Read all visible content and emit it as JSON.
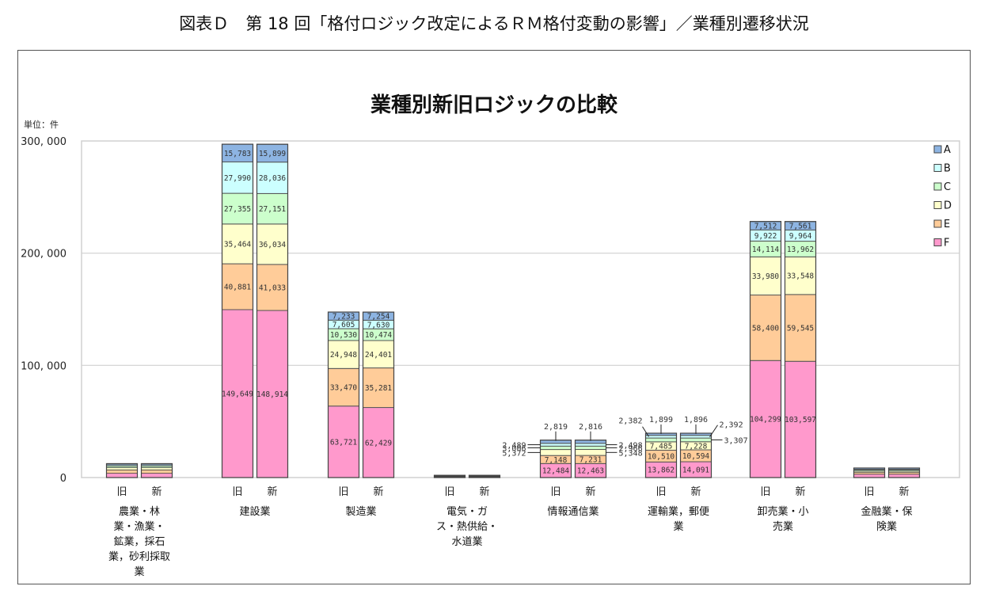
{
  "outer_title": "図表Ｄ　第 18 回「格付ロジック改定によるＲＭ格付変動の影響」／業種別遷移状況",
  "chart_data": {
    "type": "bar",
    "stacked": true,
    "title": "業種別新旧ロジックの比較",
    "unit_label": "単位：件",
    "xlabel": "",
    "ylabel": "",
    "ylim": [
      0,
      300000
    ],
    "yticks": [
      0,
      100000,
      200000,
      300000
    ],
    "ytick_labels": [
      "0",
      "100, 000",
      "200, 000",
      "300, 000"
    ],
    "grid": true,
    "legend_position": "top-right",
    "stack_order": [
      "F",
      "E",
      "D",
      "C",
      "B",
      "A"
    ],
    "legend": [
      {
        "name": "A",
        "color": "#8DB4E2"
      },
      {
        "name": "B",
        "color": "#CCFFFF"
      },
      {
        "name": "C",
        "color": "#CCFFCC"
      },
      {
        "name": "D",
        "color": "#FFFFCC"
      },
      {
        "name": "E",
        "color": "#FFCC99"
      },
      {
        "name": "F",
        "color": "#FF99CC"
      }
    ],
    "bar_labels": [
      "旧",
      "新"
    ],
    "categories": [
      {
        "name": "農業・林業・漁業・鉱業，採石業，砂利採取業",
        "lines": [
          "農業・林",
          "業・漁業・",
          "鉱業，採石",
          "業，砂利採取",
          "業"
        ],
        "bars": [
          {
            "label": "旧",
            "values": {
              "F": 3800,
              "E": 3000,
              "D": 2000,
              "C": 1500,
              "B": 1100,
              "A": 1000
            },
            "show_labels": false
          },
          {
            "label": "新",
            "values": {
              "F": 3800,
              "E": 3000,
              "D": 2000,
              "C": 1500,
              "B": 1100,
              "A": 1000
            },
            "show_labels": false
          }
        ]
      },
      {
        "name": "建設業",
        "lines": [
          "建設業"
        ],
        "bars": [
          {
            "label": "旧",
            "values": {
              "F": 149649,
              "E": 40881,
              "D": 35464,
              "C": 27355,
              "B": 27990,
              "A": 15783
            },
            "show_labels": true
          },
          {
            "label": "新",
            "values": {
              "F": 148914,
              "E": 41033,
              "D": 36034,
              "C": 27151,
              "B": 28036,
              "A": 15899
            },
            "show_labels": true
          }
        ]
      },
      {
        "name": "製造業",
        "lines": [
          "製造業"
        ],
        "bars": [
          {
            "label": "旧",
            "values": {
              "F": 63721,
              "E": 33470,
              "D": 24948,
              "C": 10530,
              "B": 7605,
              "A": 7233
            },
            "show_labels": true
          },
          {
            "label": "新",
            "values": {
              "F": 62429,
              "E": 35281,
              "D": 24401,
              "C": 10474,
              "B": 7630,
              "A": 7254
            },
            "show_labels": true
          }
        ]
      },
      {
        "name": "電気・ガス・熱供給・水道業",
        "lines": [
          "電気・ガ",
          "ス・熱供給・",
          "水道業"
        ],
        "bars": [
          {
            "label": "旧",
            "values": {
              "F": 500,
              "E": 400,
              "D": 350,
              "C": 300,
              "B": 250,
              "A": 200
            },
            "show_labels": false
          },
          {
            "label": "新",
            "values": {
              "F": 500,
              "E": 400,
              "D": 350,
              "C": 300,
              "B": 250,
              "A": 200
            },
            "show_labels": false
          }
        ]
      },
      {
        "name": "情報通信業",
        "lines": [
          "情報通信業"
        ],
        "bars": [
          {
            "label": "旧",
            "values": {
              "F": 12484,
              "E": 7148,
              "D": 5372,
              "C": 3006,
              "B": 2489,
              "A": 2819
            },
            "show_labels": true
          },
          {
            "label": "新",
            "values": {
              "F": 12463,
              "E": 7231,
              "D": 5348,
              "C": 2966,
              "B": 2498,
              "A": 2816
            },
            "show_labels": true
          }
        ]
      },
      {
        "name": "運輸業，郵便業",
        "lines": [
          "運輸業，郵便",
          "業"
        ],
        "bars": [
          {
            "label": "旧",
            "values": {
              "F": 13862,
              "E": 10510,
              "D": 7485,
              "C": 3375,
              "B": 2382,
              "A": 1899
            },
            "show_labels": true
          },
          {
            "label": "新",
            "values": {
              "F": 14091,
              "E": 10594,
              "D": 7228,
              "C": 3307,
              "B": 2392,
              "A": 1896
            },
            "show_labels": true
          }
        ]
      },
      {
        "name": "卸売業・小売業",
        "lines": [
          "卸売業・小",
          "売業"
        ],
        "bars": [
          {
            "label": "旧",
            "values": {
              "F": 104299,
              "E": 58400,
              "D": 33980,
              "C": 14114,
              "B": 9922,
              "A": 7512
            },
            "show_labels": true
          },
          {
            "label": "新",
            "values": {
              "F": 103597,
              "E": 59545,
              "D": 33548,
              "C": 13962,
              "B": 9964,
              "A": 7561
            },
            "show_labels": true
          }
        ]
      },
      {
        "name": "金融業・保険業",
        "lines": [
          "金融業・保",
          "険業"
        ],
        "bars": [
          {
            "label": "旧",
            "values": {
              "F": 3000,
              "E": 1500,
              "D": 1200,
              "C": 1000,
              "B": 800,
              "A": 1000
            },
            "show_labels": false
          },
          {
            "label": "新",
            "values": {
              "F": 3000,
              "E": 1500,
              "D": 1200,
              "C": 1000,
              "B": 800,
              "A": 1000
            },
            "show_labels": false
          }
        ]
      }
    ],
    "callouts": [
      {
        "category": 4,
        "bar": 0,
        "segment": "A",
        "text": "2,819",
        "side": "top"
      },
      {
        "category": 4,
        "bar": 0,
        "segment": "B",
        "text": "2,489",
        "side": "left"
      },
      {
        "category": 4,
        "bar": 0,
        "segment": "C",
        "text": "3,006",
        "side": "left"
      },
      {
        "category": 4,
        "bar": 0,
        "segment": "D",
        "text": "5,372",
        "side": "left"
      },
      {
        "category": 4,
        "bar": 1,
        "segment": "A",
        "text": "2,816",
        "side": "top"
      },
      {
        "category": 4,
        "bar": 1,
        "segment": "B",
        "text": "2,498",
        "side": "right"
      },
      {
        "category": 4,
        "bar": 1,
        "segment": "C",
        "text": "2,966",
        "side": "right"
      },
      {
        "category": 4,
        "bar": 1,
        "segment": "D",
        "text": "5,348",
        "side": "right"
      },
      {
        "category": 5,
        "bar": 0,
        "segment": "A",
        "text": "1,899",
        "side": "top"
      },
      {
        "category": 5,
        "bar": 0,
        "segment": "B",
        "text": "2,382",
        "side": "topleft"
      },
      {
        "category": 5,
        "bar": 1,
        "segment": "A",
        "text": "1,896",
        "side": "top"
      },
      {
        "category": 5,
        "bar": 1,
        "segment": "B",
        "text": "2,392",
        "side": "topright"
      },
      {
        "category": 5,
        "bar": 1,
        "segment": "C",
        "text": "3,307",
        "side": "right"
      }
    ]
  }
}
